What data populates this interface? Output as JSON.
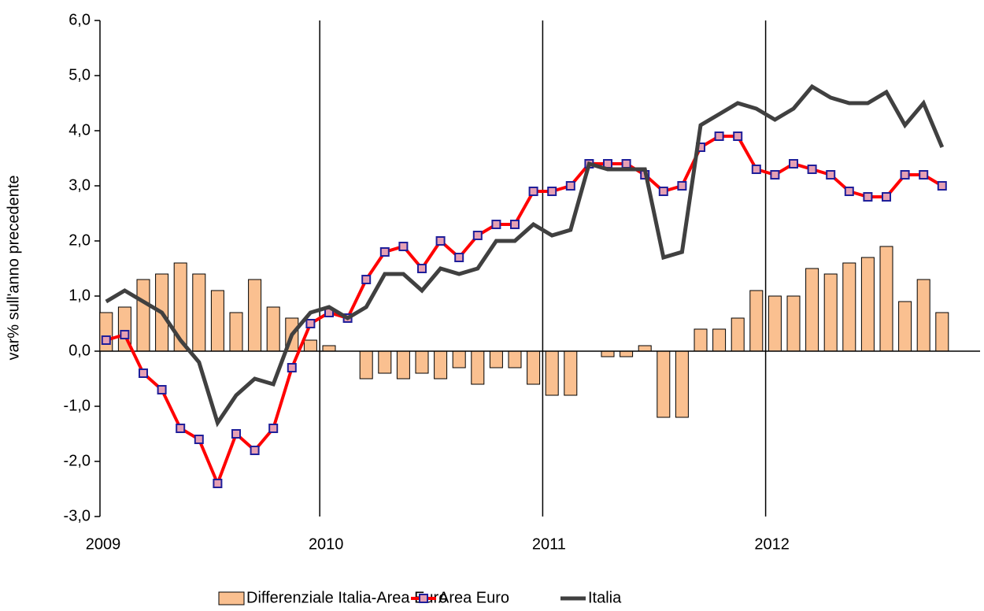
{
  "chart_data": {
    "type": "bar-line",
    "y_label": "var% sull'anno precedente",
    "categories": [
      "2009",
      null,
      null,
      null,
      null,
      null,
      null,
      null,
      null,
      null,
      null,
      null,
      "2010",
      null,
      null,
      null,
      null,
      null,
      null,
      null,
      null,
      null,
      null,
      null,
      "2011",
      null,
      null,
      null,
      null,
      null,
      null,
      null,
      null,
      null,
      null,
      null,
      "2012",
      null,
      null,
      null,
      null,
      null,
      null,
      null,
      null,
      null
    ],
    "series": [
      {
        "name": "Differenziale Italia-Area Euro",
        "type": "bar",
        "color": "#fac090",
        "values": [
          0.7,
          0.8,
          1.3,
          1.4,
          1.6,
          1.4,
          1.1,
          0.7,
          1.3,
          0.8,
          0.6,
          0.2,
          0.1,
          0.0,
          -0.5,
          -0.4,
          -0.5,
          -0.4,
          -0.5,
          -0.3,
          -0.6,
          -0.3,
          -0.3,
          -0.6,
          -0.8,
          -0.8,
          0.0,
          -0.1,
          -0.1,
          0.1,
          -1.2,
          -1.2,
          0.4,
          0.4,
          0.6,
          1.1,
          1.0,
          1.0,
          1.5,
          1.4,
          1.6,
          1.7,
          1.9,
          0.9,
          1.3,
          0.7
        ]
      },
      {
        "name": "Area Euro",
        "type": "line",
        "color": "#ff0000",
        "marker_color": "#1f1f9a",
        "values": [
          0.2,
          0.3,
          -0.4,
          -0.7,
          -1.4,
          -1.6,
          -2.4,
          -1.5,
          -1.8,
          -1.4,
          -0.3,
          0.5,
          0.7,
          0.6,
          1.3,
          1.8,
          1.9,
          1.5,
          2.0,
          1.7,
          2.1,
          2.3,
          2.3,
          2.9,
          2.9,
          3.0,
          3.4,
          3.4,
          3.4,
          3.2,
          2.9,
          3.0,
          3.7,
          3.9,
          3.9,
          3.3,
          3.2,
          3.4,
          3.3,
          3.2,
          2.9,
          2.8,
          2.8,
          3.2,
          3.2,
          3.0
        ]
      },
      {
        "name": "Italia",
        "type": "line",
        "color": "#404040",
        "values": [
          0.9,
          1.1,
          0.9,
          0.7,
          0.2,
          -0.2,
          -1.3,
          -0.8,
          -0.5,
          -0.6,
          0.3,
          0.7,
          0.8,
          0.6,
          0.8,
          1.4,
          1.4,
          1.1,
          1.5,
          1.4,
          1.5,
          2.0,
          2.0,
          2.3,
          2.1,
          2.2,
          3.4,
          3.3,
          3.3,
          3.3,
          1.7,
          1.8,
          4.1,
          4.3,
          4.5,
          4.4,
          4.2,
          4.4,
          4.8,
          4.6,
          4.5,
          4.5,
          4.7,
          4.1,
          4.5,
          3.7
        ]
      }
    ],
    "ylim": [
      -3,
      6
    ],
    "yticks": [
      {
        "value": -3,
        "label": "-3,0"
      },
      {
        "value": -2,
        "label": "-2,0"
      },
      {
        "value": -1,
        "label": "-1,0"
      },
      {
        "value": 0,
        "label": "0,0"
      },
      {
        "value": 1,
        "label": "1,0"
      },
      {
        "value": 2,
        "label": "2,0"
      },
      {
        "value": 3,
        "label": "3,0"
      },
      {
        "value": 4,
        "label": "4,0"
      },
      {
        "value": 5,
        "label": "5,0"
      },
      {
        "value": 6,
        "label": "6,0"
      }
    ],
    "legend": "bottom"
  }
}
